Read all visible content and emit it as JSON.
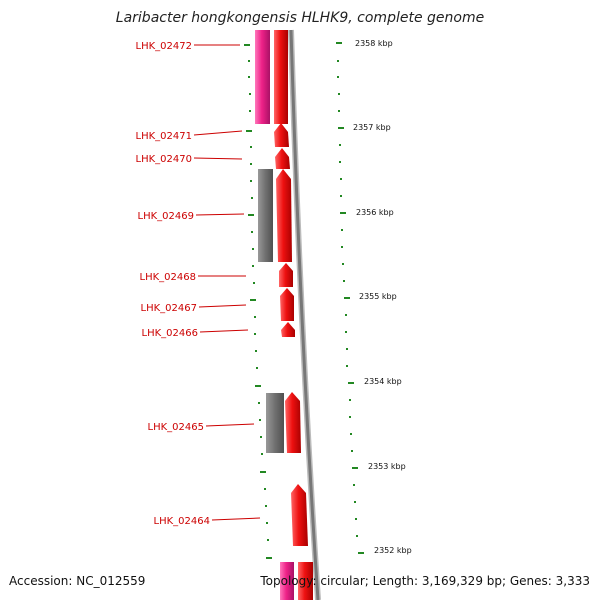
{
  "title": "Laribacter hongkongensis HLHK9, complete genome",
  "footer": {
    "accession": "Accession: NC_012559",
    "summary": "Topology: circular; Length: 3,169,329 bp; Genes: 3,333"
  },
  "colors": {
    "gene_red": "#ee1111",
    "gene_pink": "#ee2288",
    "gene_gray": "#707070",
    "label": "#cc0000",
    "tick": "#228822",
    "backbone": "#888888"
  },
  "genes": [
    {
      "id": "LHK_02472"
    },
    {
      "id": "LHK_02471"
    },
    {
      "id": "LHK_02470"
    },
    {
      "id": "LHK_02469"
    },
    {
      "id": "LHK_02468"
    },
    {
      "id": "LHK_02467"
    },
    {
      "id": "LHK_02466"
    },
    {
      "id": "LHK_02465"
    },
    {
      "id": "LHK_02464"
    }
  ],
  "ticks": [
    "2358 kbp",
    "2357 kbp",
    "2356 kbp",
    "2355 kbp",
    "2354 kbp",
    "2353 kbp",
    "2352 kbp"
  ]
}
